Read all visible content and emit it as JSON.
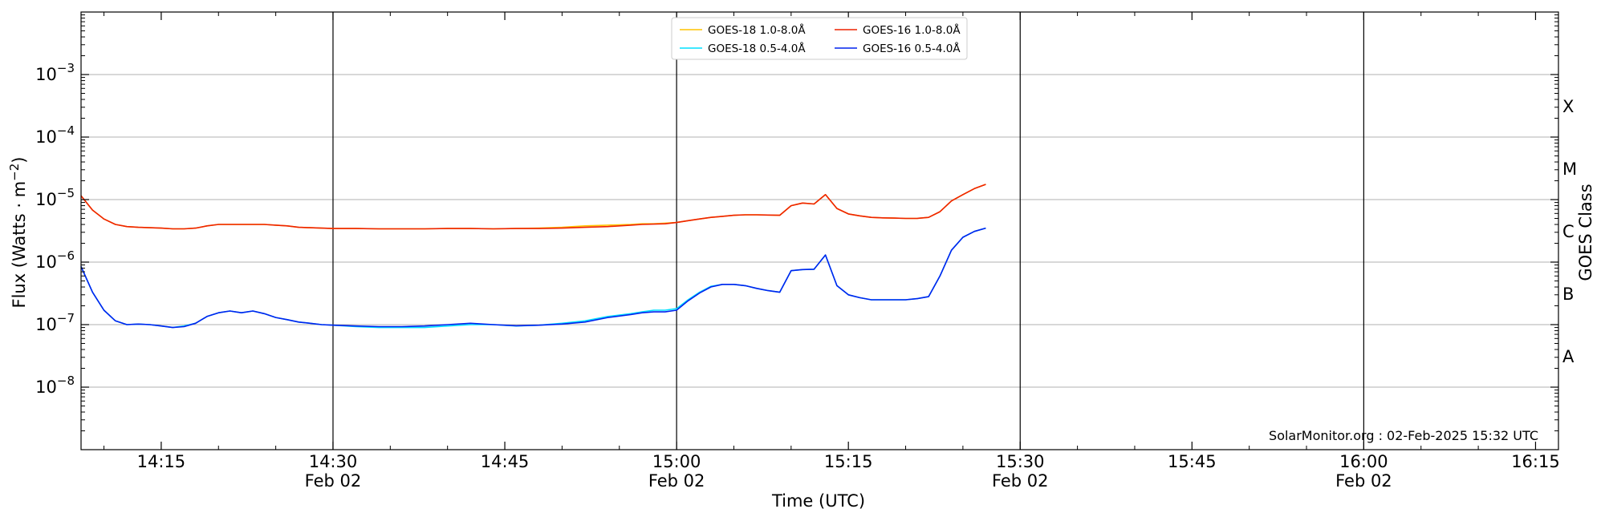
{
  "chart_data": {
    "type": "line",
    "title": "",
    "xlabel": "Time (UTC)",
    "ylabel_main": "Flux (Watts",
    "ylabel_unit": "m",
    "ylabel_exp": "−2",
    "ylabel_right": "GOES Class",
    "y_scale": "log",
    "ylim": [
      1e-09,
      0.01
    ],
    "y_ticks": [
      {
        "value": 1e-08,
        "base": "10",
        "exp": "−8"
      },
      {
        "value": 1e-07,
        "base": "10",
        "exp": "−7"
      },
      {
        "value": 1e-06,
        "base": "10",
        "exp": "−6"
      },
      {
        "value": 1e-05,
        "base": "10",
        "exp": "−5"
      },
      {
        "value": 0.0001,
        "base": "10",
        "exp": "−4"
      },
      {
        "value": 0.001,
        "base": "10",
        "exp": "−3"
      }
    ],
    "x_range": [
      "14:08",
      "16:17"
    ],
    "x_ticks": [
      {
        "time": "14:15",
        "label": "14:15",
        "date": ""
      },
      {
        "time": "14:30",
        "label": "14:30",
        "date": "Feb 02"
      },
      {
        "time": "14:45",
        "label": "14:45",
        "date": ""
      },
      {
        "time": "15:00",
        "label": "15:00",
        "date": "Feb 02"
      },
      {
        "time": "15:15",
        "label": "15:15",
        "date": ""
      },
      {
        "time": "15:30",
        "label": "15:30",
        "date": "Feb 02"
      },
      {
        "time": "15:45",
        "label": "15:45",
        "date": ""
      },
      {
        "time": "16:00",
        "label": "16:00",
        "date": "Feb 02"
      },
      {
        "time": "16:15",
        "label": "16:15",
        "date": ""
      }
    ],
    "class_labels": [
      {
        "label": "A",
        "value": 3.16e-08
      },
      {
        "label": "B",
        "value": 3.16e-07
      },
      {
        "label": "C",
        "value": 3.16e-06
      },
      {
        "label": "M",
        "value": 3.16e-05
      },
      {
        "label": "X",
        "value": 0.000316
      }
    ],
    "grid": "horizontal at decades; vertical at 30-minute marks",
    "legend_position": "top-center",
    "times": [
      "14:08",
      "14:09",
      "14:10",
      "14:11",
      "14:12",
      "14:13",
      "14:14",
      "14:15",
      "14:16",
      "14:17",
      "14:18",
      "14:19",
      "14:20",
      "14:21",
      "14:22",
      "14:23",
      "14:24",
      "14:25",
      "14:26",
      "14:27",
      "14:28",
      "14:29",
      "14:30",
      "14:32",
      "14:34",
      "14:36",
      "14:38",
      "14:40",
      "14:42",
      "14:44",
      "14:46",
      "14:48",
      "14:50",
      "14:52",
      "14:54",
      "14:56",
      "14:57",
      "14:58",
      "14:59",
      "15:00",
      "15:01",
      "15:02",
      "15:03",
      "15:04",
      "15:05",
      "15:06",
      "15:07",
      "15:08",
      "15:09",
      "15:10",
      "15:11",
      "15:12",
      "15:13",
      "15:14",
      "15:15",
      "15:16",
      "15:17",
      "15:18",
      "15:19",
      "15:20",
      "15:21",
      "15:22",
      "15:23",
      "15:24",
      "15:25",
      "15:26",
      "15:27"
    ],
    "series": [
      {
        "name": "GOES-18 1.0-8.0Å",
        "color": "#ffc400",
        "values": [
          1.15e-05,
          6.8e-06,
          4.9e-06,
          4e-06,
          3.7e-06,
          3.6e-06,
          3.55e-06,
          3.5e-06,
          3.4e-06,
          3.4e-06,
          3.5e-06,
          3.8e-06,
          4e-06,
          4e-06,
          4e-06,
          4e-06,
          4e-06,
          3.9e-06,
          3.8e-06,
          3.6e-06,
          3.55e-06,
          3.5e-06,
          3.45e-06,
          3.45e-06,
          3.4e-06,
          3.4e-06,
          3.4e-06,
          3.45e-06,
          3.45e-06,
          3.4e-06,
          3.45e-06,
          3.5e-06,
          3.6e-06,
          3.8e-06,
          3.9e-06,
          4e-06,
          4.1e-06,
          4.1e-06,
          4.2e-06,
          4.3e-06,
          4.6e-06,
          4.9e-06,
          5.2e-06,
          5.4e-06,
          5.6e-06,
          5.7e-06,
          5.7e-06,
          5.65e-06,
          5.6e-06,
          8e-06,
          8.8e-06,
          8.5e-06,
          1.2e-05,
          7.2e-06,
          5.9e-06,
          5.5e-06,
          5.2e-06,
          5.1e-06,
          5.05e-06,
          5e-06,
          5e-06,
          5.2e-06,
          6.4e-06,
          9.5e-06,
          1.2e-05,
          1.5e-05,
          1.75e-05
        ]
      },
      {
        "name": "GOES-16 1.0-8.0Å",
        "color": "#ee2200",
        "values": [
          1.15e-05,
          6.8e-06,
          4.9e-06,
          4e-06,
          3.7e-06,
          3.6e-06,
          3.55e-06,
          3.5e-06,
          3.4e-06,
          3.4e-06,
          3.5e-06,
          3.8e-06,
          4e-06,
          4e-06,
          4e-06,
          4e-06,
          4e-06,
          3.9e-06,
          3.8e-06,
          3.6e-06,
          3.55e-06,
          3.5e-06,
          3.45e-06,
          3.45e-06,
          3.4e-06,
          3.4e-06,
          3.4e-06,
          3.45e-06,
          3.45e-06,
          3.4e-06,
          3.45e-06,
          3.45e-06,
          3.5e-06,
          3.6e-06,
          3.7e-06,
          3.9e-06,
          4e-06,
          4.05e-06,
          4.1e-06,
          4.3e-06,
          4.6e-06,
          4.9e-06,
          5.2e-06,
          5.4e-06,
          5.6e-06,
          5.7e-06,
          5.7e-06,
          5.65e-06,
          5.6e-06,
          8e-06,
          8.8e-06,
          8.5e-06,
          1.2e-05,
          7.2e-06,
          5.9e-06,
          5.5e-06,
          5.2e-06,
          5.1e-06,
          5.05e-06,
          5e-06,
          5e-06,
          5.2e-06,
          6.4e-06,
          9.5e-06,
          1.2e-05,
          1.5e-05,
          1.75e-05
        ]
      },
      {
        "name": "GOES-18 0.5-4.0Å",
        "color": "#00e0ff",
        "values": [
          8.5e-07,
          3.3e-07,
          1.7e-07,
          1.15e-07,
          1e-07,
          1.02e-07,
          1e-07,
          9.5e-08,
          9e-08,
          9.5e-08,
          1.05e-07,
          1.35e-07,
          1.55e-07,
          1.65e-07,
          1.55e-07,
          1.65e-07,
          1.5e-07,
          1.3e-07,
          1.2e-07,
          1.1e-07,
          1.05e-07,
          1e-07,
          9.8e-08,
          9.3e-08,
          9e-08,
          9e-08,
          9e-08,
          9.5e-08,
          1e-07,
          1e-07,
          9.5e-08,
          9.8e-08,
          1.05e-07,
          1.15e-07,
          1.35e-07,
          1.5e-07,
          1.6e-07,
          1.7e-07,
          1.7e-07,
          1.8e-07,
          2.5e-07,
          3.3e-07,
          4.1e-07,
          4.4e-07,
          4.4e-07,
          4.2e-07,
          3.8e-07,
          3.5e-07,
          3.3e-07,
          7.3e-07,
          7.6e-07,
          7.7e-07,
          1.3e-06,
          4.2e-07,
          3e-07,
          2.7e-07,
          2.5e-07,
          2.5e-07,
          2.5e-07,
          2.5e-07,
          2.6e-07,
          2.8e-07,
          6e-07,
          1.55e-06,
          2.5e-06,
          3.1e-06,
          3.5e-06
        ]
      },
      {
        "name": "GOES-16 0.5-4.0Å",
        "color": "#0022ee",
        "values": [
          8.5e-07,
          3.3e-07,
          1.7e-07,
          1.15e-07,
          1e-07,
          1.02e-07,
          1e-07,
          9.5e-08,
          9e-08,
          9.3e-08,
          1.05e-07,
          1.35e-07,
          1.55e-07,
          1.65e-07,
          1.55e-07,
          1.65e-07,
          1.5e-07,
          1.3e-07,
          1.2e-07,
          1.1e-07,
          1.05e-07,
          1e-07,
          9.8e-08,
          9.5e-08,
          9.3e-08,
          9.3e-08,
          9.5e-08,
          1e-07,
          1.05e-07,
          1e-07,
          9.6e-08,
          9.8e-08,
          1.02e-07,
          1.1e-07,
          1.3e-07,
          1.45e-07,
          1.55e-07,
          1.6e-07,
          1.6e-07,
          1.7e-07,
          2.4e-07,
          3.2e-07,
          4e-07,
          4.4e-07,
          4.4e-07,
          4.2e-07,
          3.8e-07,
          3.5e-07,
          3.3e-07,
          7.3e-07,
          7.6e-07,
          7.7e-07,
          1.3e-06,
          4.2e-07,
          3e-07,
          2.7e-07,
          2.5e-07,
          2.5e-07,
          2.5e-07,
          2.5e-07,
          2.6e-07,
          2.8e-07,
          6e-07,
          1.55e-06,
          2.5e-06,
          3.1e-06,
          3.5e-06
        ]
      }
    ],
    "legend_order": [
      0,
      2,
      1,
      3
    ],
    "annotation": "SolarMonitor.org : 02-Feb-2025 15:32 UTC"
  }
}
